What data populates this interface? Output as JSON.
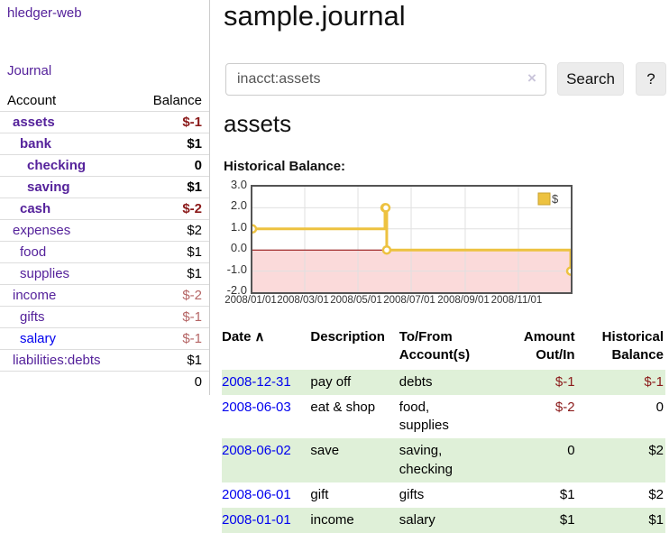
{
  "brand": "hledger-web",
  "sidebar": {
    "journal_link": "Journal",
    "accounts": {
      "header_account": "Account",
      "header_balance": "Balance",
      "rows": [
        {
          "name": "assets",
          "level": 1,
          "bold": true,
          "balance": "$-1"
        },
        {
          "name": "bank",
          "level": 2,
          "bold": true,
          "balance": "$1"
        },
        {
          "name": "checking",
          "level": 3,
          "bold": true,
          "balance": "0"
        },
        {
          "name": "saving",
          "level": 3,
          "bold": true,
          "balance": "$1"
        },
        {
          "name": "cash",
          "level": 2,
          "bold": true,
          "balance": "$-2"
        },
        {
          "name": "expenses",
          "level": 1,
          "bold": false,
          "balance": "$2"
        },
        {
          "name": "food",
          "level": 2,
          "bold": false,
          "balance": "$1"
        },
        {
          "name": "supplies",
          "level": 2,
          "bold": false,
          "balance": "$1"
        },
        {
          "name": "income",
          "level": 1,
          "bold": false,
          "balance": "$-2"
        },
        {
          "name": "gifts",
          "level": 2,
          "bold": false,
          "balance": "$-1"
        },
        {
          "name": "salary",
          "level": 2,
          "bold": false,
          "balance": "$-1",
          "link_color": "blue"
        },
        {
          "name": "liabilities:debts",
          "level": 1,
          "bold": false,
          "balance": "$1"
        }
      ],
      "total": "0"
    }
  },
  "main": {
    "title": "sample.journal",
    "account_heading": "assets",
    "chart_label": "Historical Balance:"
  },
  "search": {
    "value": "inacct:assets",
    "clear_icon": "×",
    "button_label": "Search",
    "help_label": "?"
  },
  "chart_data": {
    "type": "line",
    "step": true,
    "title": "Historical Balance",
    "series": [
      {
        "name": "$",
        "points": [
          {
            "date": "2008-01-01",
            "day": 0,
            "value": 1
          },
          {
            "date": "2008-06-01",
            "day": 152,
            "value": 2
          },
          {
            "date": "2008-06-02",
            "day": 153,
            "value": 2
          },
          {
            "date": "2008-06-03",
            "day": 154,
            "value": 0
          },
          {
            "date": "2008-12-31",
            "day": 365,
            "value": -1
          }
        ]
      }
    ],
    "x_ticks": [
      {
        "label": "2008/01/01",
        "day": 0
      },
      {
        "label": "2008/03/01",
        "day": 60
      },
      {
        "label": "2008/05/01",
        "day": 121
      },
      {
        "label": "2008/07/01",
        "day": 182
      },
      {
        "label": "2008/09/01",
        "day": 244
      },
      {
        "label": "2008/11/01",
        "day": 305
      }
    ],
    "y_ticks": [
      "3.0",
      "2.0",
      "1.0",
      "0.0",
      "-1.0",
      "-2.0"
    ],
    "ylim": [
      -2,
      3
    ],
    "x_max_day": 365,
    "legend": {
      "position": "top-right",
      "label": "$"
    },
    "colors": {
      "series": "#edc240",
      "marker_fill": "#ffffff",
      "negative_fill": "#fbdada",
      "zero_line": "#900000",
      "grid": "#e0e0e0",
      "border": "#545454"
    }
  },
  "register": {
    "headers": [
      {
        "line1": "Date",
        "line2": "",
        "align": "left",
        "sort": "asc",
        "sort_icon": "∧"
      },
      {
        "line1": "Description",
        "line2": "",
        "align": "left"
      },
      {
        "line1": "To/From",
        "line2": "Account(s)",
        "align": "left"
      },
      {
        "line1": "Amount",
        "line2": "Out/In",
        "align": "right"
      },
      {
        "line1": "Historical",
        "line2": "Balance",
        "align": "right"
      }
    ],
    "rows": [
      {
        "date": "2008-12-31",
        "description": "pay off",
        "accounts": "debts",
        "amount": "$-1",
        "balance": "$-1"
      },
      {
        "date": "2008-06-03",
        "description": "eat & shop",
        "accounts": "food, supplies",
        "amount": "$-2",
        "balance": "0"
      },
      {
        "date": "2008-06-02",
        "description": "save",
        "accounts": "saving, checking",
        "amount": "0",
        "balance": "$2"
      },
      {
        "date": "2008-06-01",
        "description": "gift",
        "accounts": "gifts",
        "amount": "$1",
        "balance": "$2"
      },
      {
        "date": "2008-01-01",
        "description": "income",
        "accounts": "salary",
        "amount": "$1",
        "balance": "$1"
      }
    ]
  },
  "colors": {
    "link_purple": "#55229b",
    "link_blue": "#0000ee",
    "negative_strong": "#8b1a1a",
    "negative_muted": "#b56565",
    "row_stripe": "#dff0d8",
    "accent_gold": "#edc240"
  }
}
